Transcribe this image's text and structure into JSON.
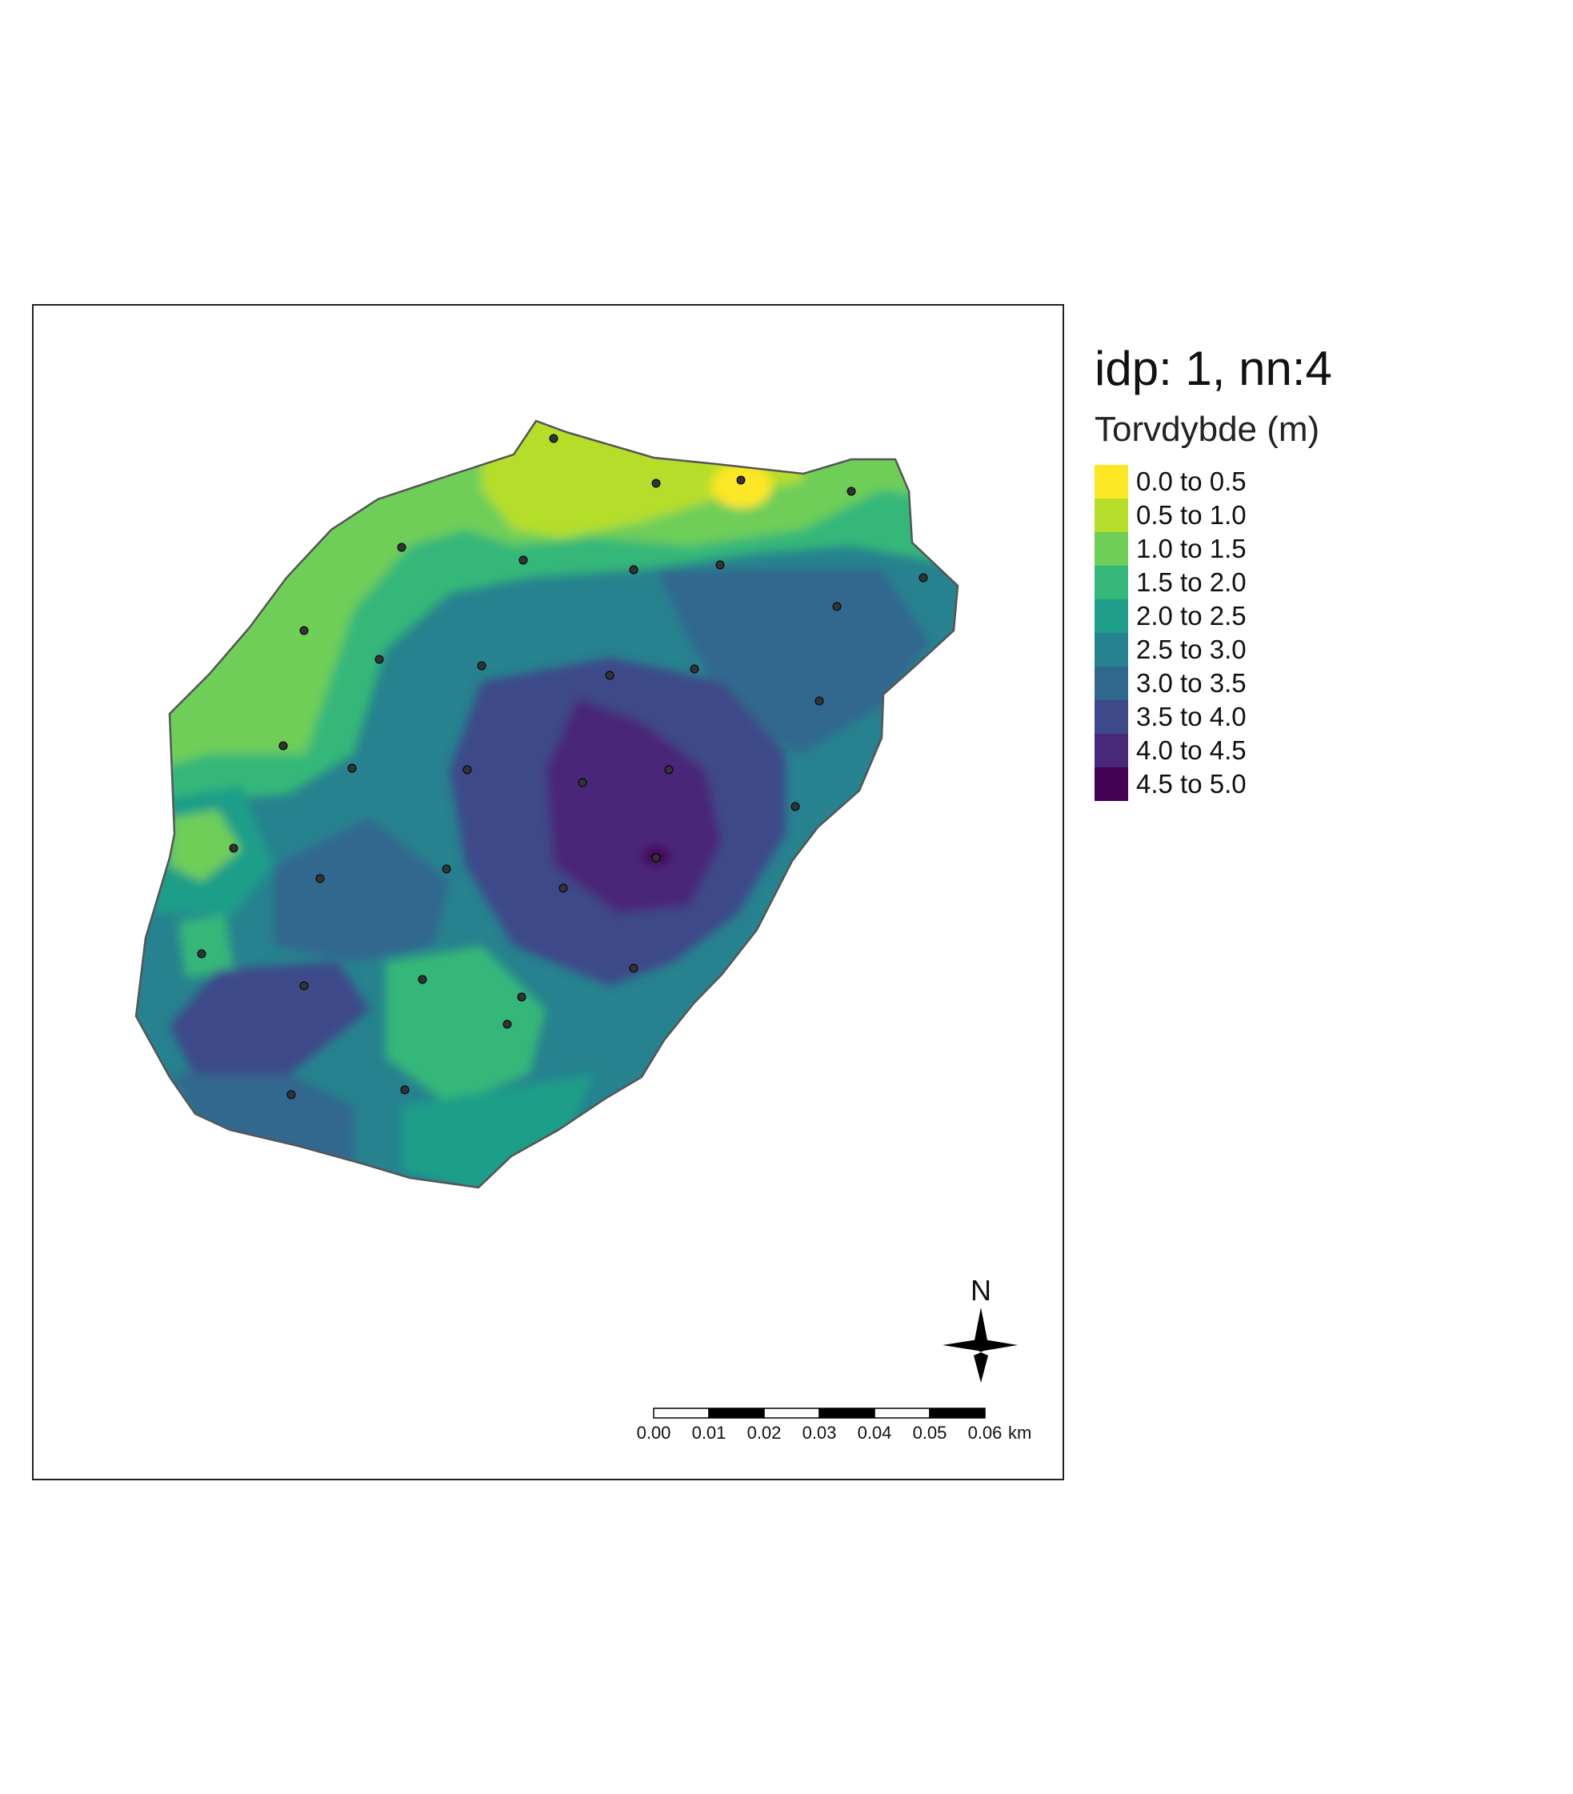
{
  "map": {
    "title": "idp: 1, nn:4",
    "legend_title": "Torvdybde (m)",
    "legend": [
      {
        "label": "0.0 to 0.5",
        "color": "#fde725"
      },
      {
        "label": "0.5 to 1.0",
        "color": "#b5de2b"
      },
      {
        "label": "1.0 to 1.5",
        "color": "#6ece58"
      },
      {
        "label": "1.5 to 2.0",
        "color": "#35b779"
      },
      {
        "label": "2.0 to 2.5",
        "color": "#1f9e89"
      },
      {
        "label": "2.5 to 3.0",
        "color": "#26828e"
      },
      {
        "label": "3.0 to 3.5",
        "color": "#31688e"
      },
      {
        "label": "3.5 to 4.0",
        "color": "#3e4989"
      },
      {
        "label": "4.0 to 4.5",
        "color": "#482878"
      },
      {
        "label": "4.5 to 5.0",
        "color": "#440154"
      }
    ],
    "north_label": "N",
    "scale_bar": {
      "ticks": [
        "0.00",
        "0.01",
        "0.02",
        "0.03",
        "0.04",
        "0.05",
        "0.06"
      ],
      "unit": "km"
    }
  }
}
